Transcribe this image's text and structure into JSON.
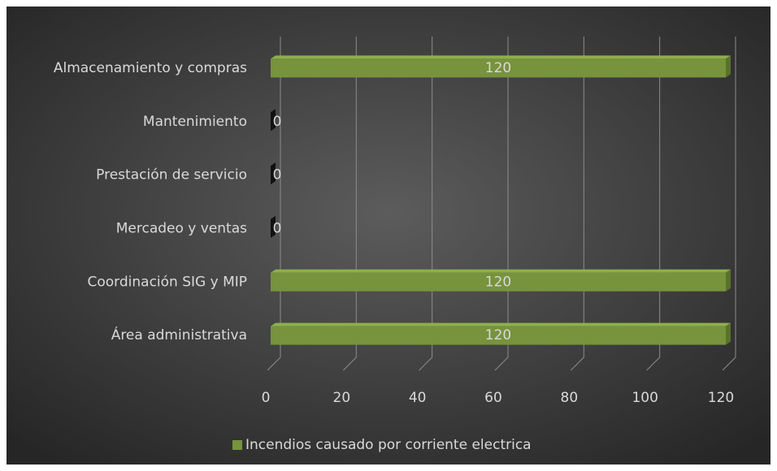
{
  "chart_data": {
    "type": "bar",
    "orientation": "horizontal",
    "categories": [
      "Área administrativa",
      "Coordinación SIG y MIP",
      "Mercadeo y ventas",
      "Prestación de servicio",
      "Mantenimiento",
      "Almacenamiento y compras"
    ],
    "series": [
      {
        "name": "Incendios causado por corriente electrica",
        "color": "#77933c",
        "values": [
          120,
          120,
          0,
          0,
          0,
          120
        ]
      }
    ],
    "xlim": [
      0,
      120
    ],
    "xticks": [
      0,
      20,
      40,
      60,
      80,
      100,
      120
    ],
    "grid": true,
    "legend": "bottom"
  }
}
